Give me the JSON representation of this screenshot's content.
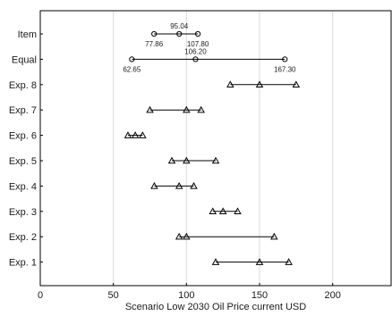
{
  "chart_data": {
    "type": "range-dot",
    "xlabel": "Scenario Low 2030 Oil Price current USD",
    "xlim": [
      0,
      240
    ],
    "xticks": [
      0,
      50,
      100,
      150,
      200
    ],
    "grid": "vertical",
    "rows": [
      {
        "label": "Item",
        "marker": "circle",
        "points": [
          77.86,
          95.04,
          107.8
        ],
        "annotations": [
          {
            "text": "95.04",
            "value": 95.04,
            "pos": "above"
          },
          {
            "text": "77.86",
            "value": 77.86,
            "pos": "below"
          },
          {
            "text": "107.80",
            "value": 107.8,
            "pos": "below"
          }
        ]
      },
      {
        "label": "Equal",
        "marker": "circle",
        "points": [
          62.65,
          106.2,
          167.3
        ],
        "annotations": [
          {
            "text": "106.20",
            "value": 106.2,
            "pos": "above"
          },
          {
            "text": "62.65",
            "value": 62.65,
            "pos": "below"
          },
          {
            "text": "167.30",
            "value": 167.3,
            "pos": "below"
          }
        ]
      },
      {
        "label": "Exp. 8",
        "marker": "triangle",
        "points": [
          130,
          150,
          175
        ],
        "annotations": []
      },
      {
        "label": "Exp. 7",
        "marker": "triangle",
        "points": [
          75,
          100,
          110
        ],
        "annotations": []
      },
      {
        "label": "Exp. 6",
        "marker": "triangle",
        "points": [
          60,
          65,
          70
        ],
        "annotations": []
      },
      {
        "label": "Exp. 5",
        "marker": "triangle",
        "points": [
          90,
          100,
          120
        ],
        "annotations": []
      },
      {
        "label": "Exp. 4",
        "marker": "triangle",
        "points": [
          78,
          95,
          105
        ],
        "annotations": []
      },
      {
        "label": "Exp. 3",
        "marker": "triangle",
        "points": [
          118,
          125,
          135
        ],
        "annotations": []
      },
      {
        "label": "Exp. 2",
        "marker": "triangle",
        "points": [
          95,
          100,
          160
        ],
        "annotations": []
      },
      {
        "label": "Exp. 1",
        "marker": "triangle",
        "points": [
          120,
          150,
          170
        ],
        "annotations": []
      }
    ]
  }
}
